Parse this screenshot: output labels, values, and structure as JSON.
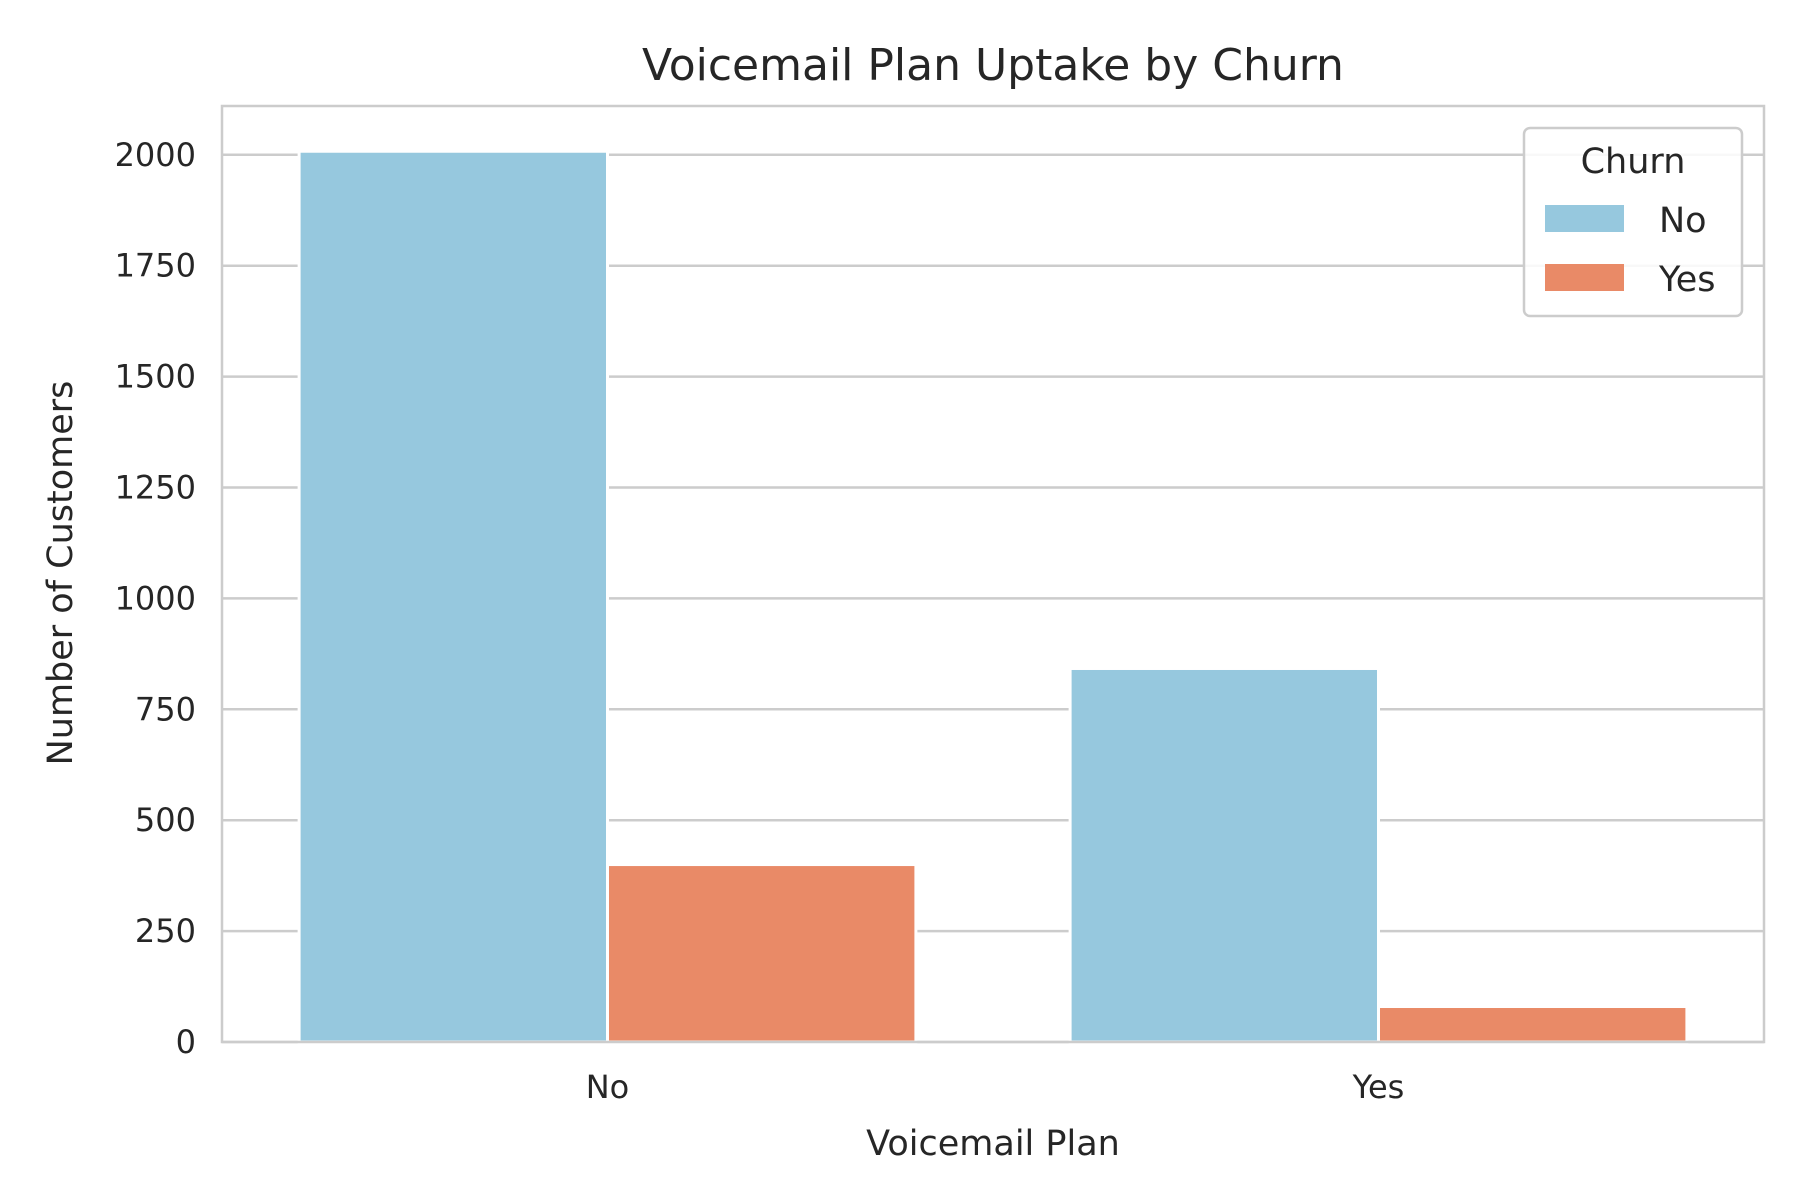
{
  "chart_data": {
    "type": "bar",
    "title": "Voicemail Plan Uptake by Churn",
    "xlabel": "Voicemail Plan",
    "ylabel": "Number of Customers",
    "categories": [
      "No",
      "Yes"
    ],
    "series": [
      {
        "name": "No",
        "color": "#96c8de",
        "values": [
          2008,
          842
        ]
      },
      {
        "name": "Yes",
        "color": "#e98a67",
        "values": [
          400,
          80
        ]
      }
    ],
    "ylim": [
      0,
      2110
    ],
    "yticks": [
      0,
      250,
      500,
      750,
      1000,
      1250,
      1500,
      1750,
      2000
    ],
    "grid": true,
    "legend": {
      "title": "Churn",
      "placement": "top-right"
    }
  }
}
